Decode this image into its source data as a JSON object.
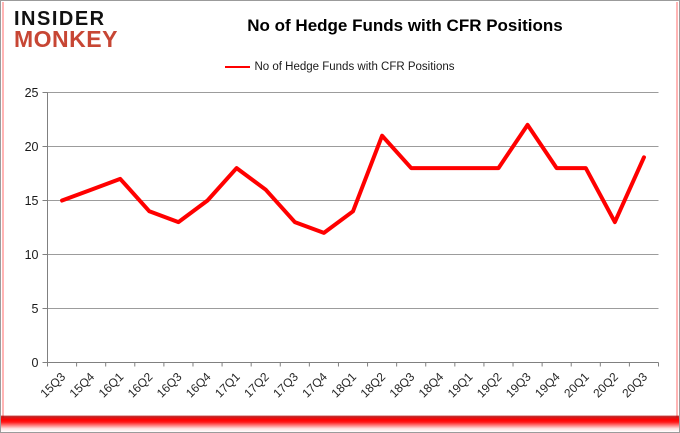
{
  "logo": {
    "line1": "INSIDER",
    "line2": "MONKEY"
  },
  "header": {
    "title": "No of Hedge Funds with CFR Positions"
  },
  "legend": {
    "label": "No of Hedge Funds with CFR Positions"
  },
  "colors": {
    "series_line": "#FF0000",
    "logo_red": "#C74634",
    "gridline": "#9C9C9C",
    "axis": "#808080",
    "bottom_bar": "#FF0000"
  },
  "chart_data": {
    "type": "line",
    "title": "No of Hedge Funds with CFR Positions",
    "categories": [
      "15Q3",
      "15Q4",
      "16Q1",
      "16Q2",
      "16Q3",
      "16Q4",
      "17Q1",
      "17Q2",
      "17Q3",
      "17Q4",
      "18Q1",
      "18Q2",
      "18Q3",
      "18Q4",
      "19Q1",
      "19Q2",
      "19Q3",
      "19Q4",
      "20Q1",
      "20Q2",
      "20Q3"
    ],
    "series": [
      {
        "name": "No of Hedge Funds with CFR Positions",
        "color": "#FF0000",
        "values": [
          15,
          16,
          17,
          14,
          13,
          15,
          18,
          16,
          13,
          12,
          14,
          21,
          18,
          18,
          18,
          18,
          22,
          18,
          18,
          13,
          19
        ]
      }
    ],
    "xlabel": "",
    "ylabel": "",
    "ylim": [
      0,
      25
    ],
    "yticks": [
      0,
      5,
      10,
      15,
      20,
      25
    ],
    "grid": true,
    "legend_position": "top-center"
  }
}
